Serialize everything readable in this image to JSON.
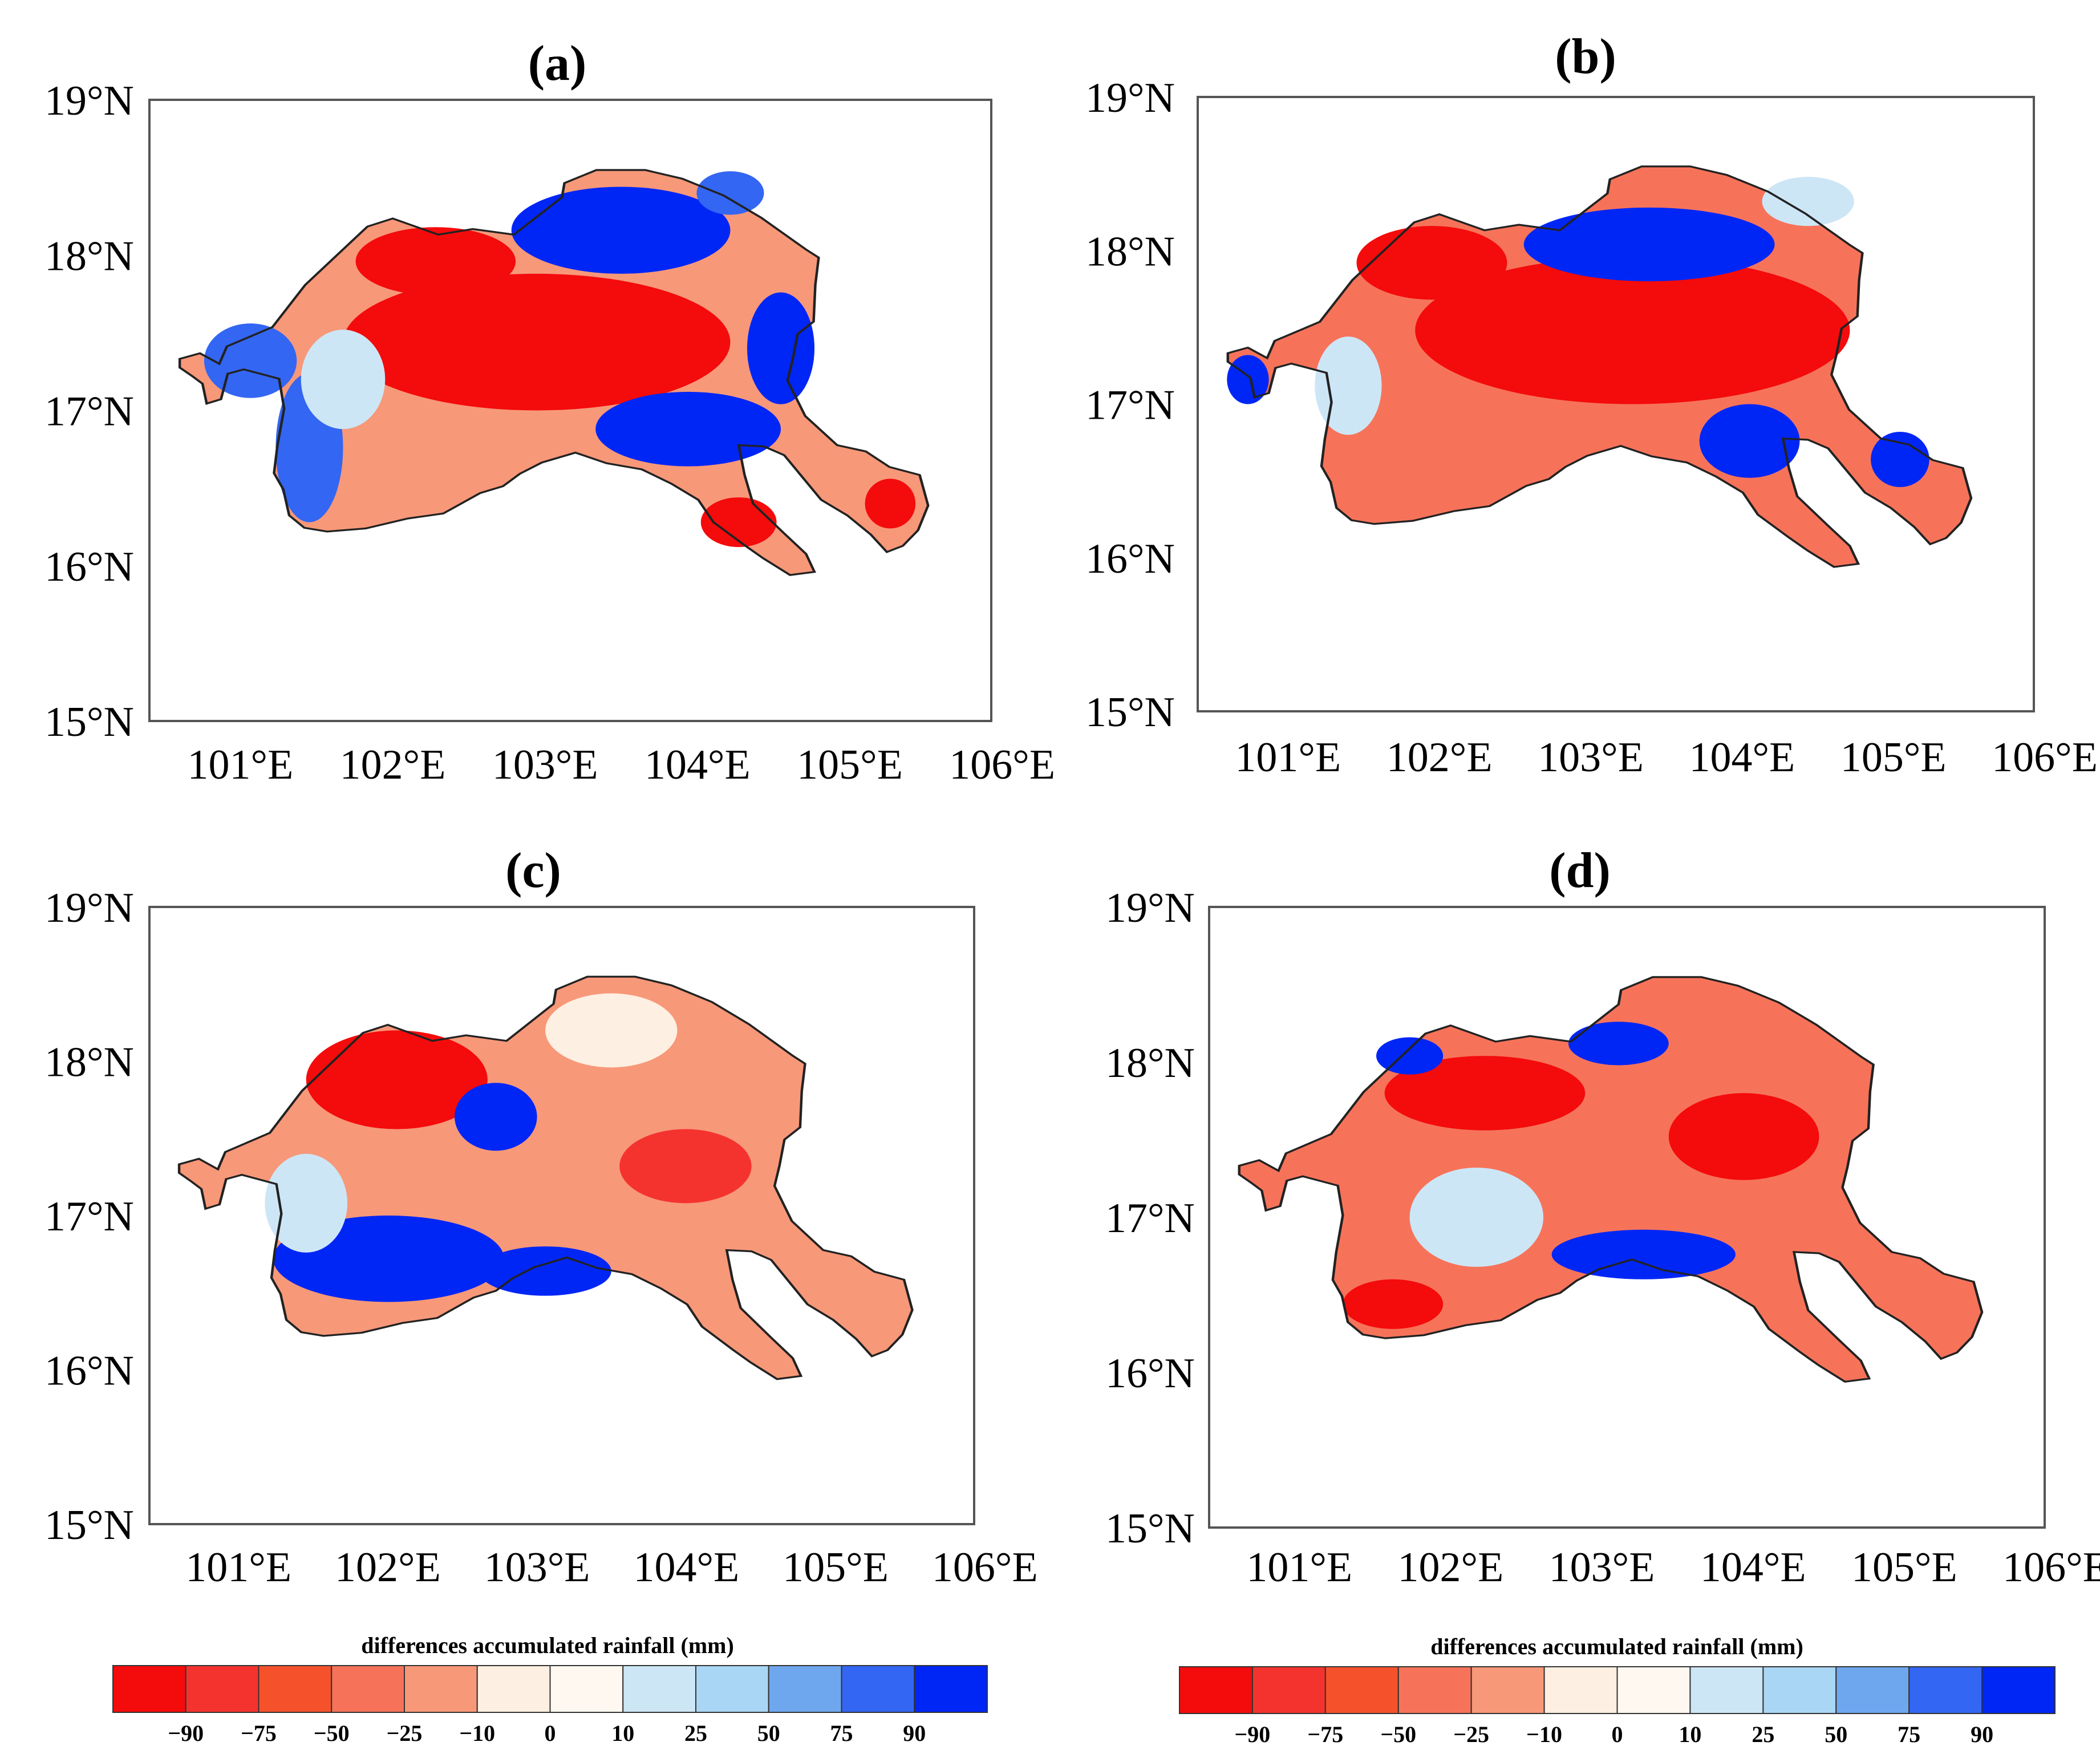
{
  "panels": [
    {
      "label": "(a)"
    },
    {
      "label": "(b)"
    },
    {
      "label": "(c)"
    },
    {
      "label": "(d)"
    }
  ],
  "lat_labels": [
    "19°N",
    "18°N",
    "17°N",
    "16°N",
    "15°N"
  ],
  "lon_labels": [
    "101°E",
    "102°E",
    "103°E",
    "104°E",
    "105°E",
    "106°E"
  ],
  "colorbar": {
    "title": "differences accumulated rainfall (mm)",
    "ticks": [
      "−90",
      "−75",
      "−50",
      "−25",
      "−10",
      "0",
      "10",
      "25",
      "50",
      "75",
      "90"
    ],
    "colors": [
      "#f40b0c",
      "#f5332e",
      "#f5522c",
      "#f6735a",
      "#f79879",
      "#fdefe1",
      "#fff8f1",
      "#cde6f6",
      "#a9d6f4",
      "#6fa7ee",
      "#3366f2",
      "#0026f5"
    ]
  }
}
